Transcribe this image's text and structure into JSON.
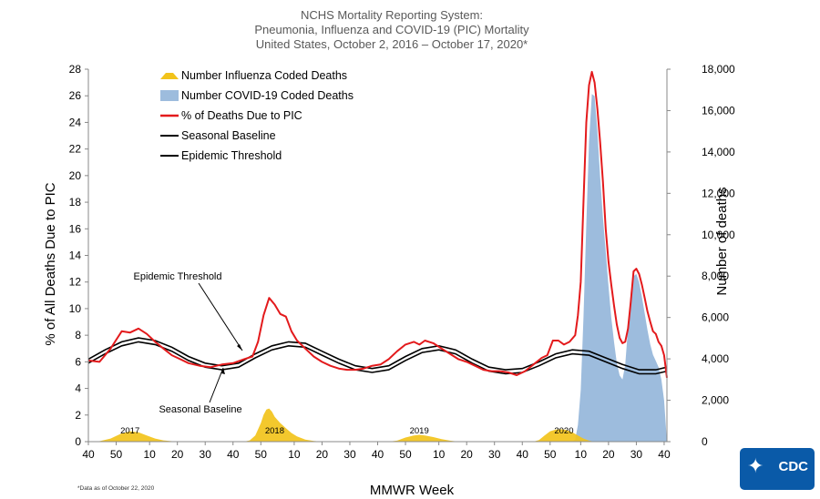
{
  "title_lines": [
    "NCHS Mortality Reporting System:",
    "Pneumonia, Influenza and COVID-19 (PIC) Mortality",
    "United States, October 2, 2016 – October 17, 2020*"
  ],
  "footnote": "*Data as of October 22, 2020",
  "logo_text": "CDC",
  "chart_data": {
    "type": "line",
    "xlabel": "MMWR Week",
    "ylabel_left": "% of All Deaths Due to PIC",
    "ylabel_right": "Number of deaths",
    "ylim_left": [
      0,
      28
    ],
    "ylim_right": [
      0,
      18000
    ],
    "yticks_left": [
      0,
      2,
      4,
      6,
      8,
      10,
      12,
      14,
      16,
      18,
      20,
      22,
      24,
      26,
      28
    ],
    "yticks_right": [
      "0",
      "2,000",
      "4,000",
      "6,000",
      "8,000",
      "10,000",
      "12,000",
      "14,000",
      "16,000",
      "18,000"
    ],
    "xticks": [
      "40",
      "50",
      "10",
      "20",
      "30",
      "40",
      "50",
      "10",
      "20",
      "30",
      "40",
      "50",
      "10",
      "20",
      "30",
      "40",
      "50",
      "10",
      "20",
      "30",
      "40"
    ],
    "xtick_index": [
      0,
      10,
      22,
      32,
      42,
      52,
      62,
      74,
      84,
      94,
      104,
      114,
      126,
      136,
      146,
      156,
      166,
      177,
      187,
      197,
      207
    ],
    "year_labels": [
      {
        "label": "2017",
        "index": 13
      },
      {
        "label": "2018",
        "index": 65
      },
      {
        "label": "2019",
        "index": 117
      },
      {
        "label": "2020",
        "index": 169
      }
    ],
    "legend": [
      {
        "label": "Number Influenza Coded Deaths",
        "kind": "area",
        "color": "#f2c31b"
      },
      {
        "label": "Number COVID-19 Coded Deaths",
        "kind": "area",
        "color": "#9dbcdd"
      },
      {
        "label": "% of Deaths Due to PIC",
        "kind": "line",
        "color": "#e31a1c"
      },
      {
        "label": "Seasonal Baseline",
        "kind": "line",
        "color": "#000000"
      },
      {
        "label": "Epidemic Threshold",
        "kind": "line",
        "color": "#000000"
      }
    ],
    "annotations": [
      {
        "label": "Epidemic Threshold",
        "points_to": "epidemic_threshold"
      },
      {
        "label": "Seasonal Baseline",
        "points_to": "seasonal_baseline"
      }
    ],
    "series": {
      "pic_percent": {
        "name": "% of Deaths Due to PIC",
        "color": "#e31a1c",
        "points": [
          [
            0,
            6.1
          ],
          [
            4,
            6.0
          ],
          [
            8,
            7.0
          ],
          [
            12,
            8.3
          ],
          [
            15,
            8.2
          ],
          [
            18,
            8.5
          ],
          [
            21,
            8.1
          ],
          [
            24,
            7.5
          ],
          [
            27,
            7.0
          ],
          [
            30,
            6.5
          ],
          [
            33,
            6.2
          ],
          [
            36,
            5.9
          ],
          [
            40,
            5.7
          ],
          [
            44,
            5.6
          ],
          [
            48,
            5.8
          ],
          [
            52,
            5.9
          ],
          [
            56,
            6.2
          ],
          [
            59,
            6.4
          ],
          [
            61,
            7.5
          ],
          [
            63,
            9.5
          ],
          [
            65,
            10.8
          ],
          [
            67,
            10.3
          ],
          [
            69,
            9.6
          ],
          [
            71,
            9.4
          ],
          [
            73,
            8.3
          ],
          [
            75,
            7.6
          ],
          [
            78,
            7.0
          ],
          [
            81,
            6.4
          ],
          [
            84,
            6.0
          ],
          [
            87,
            5.7
          ],
          [
            90,
            5.5
          ],
          [
            93,
            5.4
          ],
          [
            96,
            5.4
          ],
          [
            99,
            5.5
          ],
          [
            102,
            5.7
          ],
          [
            105,
            5.8
          ],
          [
            108,
            6.2
          ],
          [
            111,
            6.8
          ],
          [
            114,
            7.3
          ],
          [
            117,
            7.5
          ],
          [
            119,
            7.3
          ],
          [
            121,
            7.6
          ],
          [
            124,
            7.4
          ],
          [
            127,
            7.0
          ],
          [
            130,
            6.6
          ],
          [
            133,
            6.2
          ],
          [
            136,
            6.0
          ],
          [
            139,
            5.7
          ],
          [
            142,
            5.4
          ],
          [
            145,
            5.3
          ],
          [
            148,
            5.3
          ],
          [
            151,
            5.2
          ],
          [
            154,
            5.0
          ],
          [
            157,
            5.3
          ],
          [
            160,
            5.8
          ],
          [
            163,
            6.3
          ],
          [
            165,
            6.5
          ],
          [
            167,
            7.6
          ],
          [
            169,
            7.6
          ],
          [
            171,
            7.3
          ],
          [
            173,
            7.5
          ],
          [
            175,
            8.0
          ],
          [
            176,
            9.5
          ],
          [
            177,
            12.0
          ],
          [
            178,
            18.0
          ],
          [
            179,
            24.0
          ],
          [
            180,
            26.8
          ],
          [
            181,
            27.8
          ],
          [
            182,
            27.0
          ],
          [
            183,
            25.0
          ],
          [
            184,
            22.5
          ],
          [
            185,
            19.5
          ],
          [
            186,
            16.0
          ],
          [
            187,
            13.5
          ],
          [
            188,
            11.8
          ],
          [
            189,
            10.2
          ],
          [
            190,
            8.8
          ],
          [
            191,
            7.8
          ],
          [
            192,
            7.4
          ],
          [
            193,
            7.5
          ],
          [
            194,
            8.5
          ],
          [
            195,
            10.5
          ],
          [
            196,
            12.8
          ],
          [
            197,
            13.0
          ],
          [
            198,
            12.6
          ],
          [
            199,
            11.8
          ],
          [
            200,
            10.8
          ],
          [
            201,
            9.8
          ],
          [
            202,
            9.0
          ],
          [
            203,
            8.3
          ],
          [
            204,
            8.1
          ],
          [
            205,
            7.5
          ],
          [
            206,
            7.2
          ],
          [
            207,
            6.5
          ],
          [
            208,
            4.8
          ]
        ]
      },
      "seasonal_baseline": {
        "name": "Seasonal Baseline",
        "color": "#000000",
        "points": [
          [
            0,
            5.9
          ],
          [
            6,
            6.6
          ],
          [
            12,
            7.2
          ],
          [
            18,
            7.5
          ],
          [
            24,
            7.3
          ],
          [
            30,
            6.8
          ],
          [
            36,
            6.1
          ],
          [
            42,
            5.6
          ],
          [
            48,
            5.4
          ],
          [
            54,
            5.6
          ],
          [
            60,
            6.3
          ],
          [
            66,
            6.9
          ],
          [
            72,
            7.2
          ],
          [
            78,
            7.1
          ],
          [
            84,
            6.5
          ],
          [
            90,
            5.9
          ],
          [
            96,
            5.4
          ],
          [
            102,
            5.2
          ],
          [
            108,
            5.4
          ],
          [
            114,
            6.1
          ],
          [
            120,
            6.7
          ],
          [
            126,
            6.9
          ],
          [
            132,
            6.6
          ],
          [
            138,
            5.9
          ],
          [
            144,
            5.3
          ],
          [
            150,
            5.1
          ],
          [
            156,
            5.2
          ],
          [
            162,
            5.7
          ],
          [
            168,
            6.3
          ],
          [
            174,
            6.6
          ],
          [
            180,
            6.5
          ],
          [
            186,
            6.0
          ],
          [
            192,
            5.5
          ],
          [
            198,
            5.1
          ],
          [
            204,
            5.1
          ],
          [
            208,
            5.3
          ]
        ]
      },
      "epidemic_threshold": {
        "name": "Epidemic Threshold",
        "color": "#000000",
        "points": [
          [
            0,
            6.2
          ],
          [
            6,
            6.9
          ],
          [
            12,
            7.5
          ],
          [
            18,
            7.8
          ],
          [
            24,
            7.6
          ],
          [
            30,
            7.1
          ],
          [
            36,
            6.4
          ],
          [
            42,
            5.9
          ],
          [
            48,
            5.7
          ],
          [
            54,
            5.9
          ],
          [
            60,
            6.6
          ],
          [
            66,
            7.2
          ],
          [
            72,
            7.5
          ],
          [
            78,
            7.4
          ],
          [
            84,
            6.8
          ],
          [
            90,
            6.2
          ],
          [
            96,
            5.7
          ],
          [
            102,
            5.5
          ],
          [
            108,
            5.7
          ],
          [
            114,
            6.4
          ],
          [
            120,
            7.0
          ],
          [
            126,
            7.2
          ],
          [
            132,
            6.9
          ],
          [
            138,
            6.2
          ],
          [
            144,
            5.6
          ],
          [
            150,
            5.4
          ],
          [
            156,
            5.5
          ],
          [
            162,
            6.0
          ],
          [
            168,
            6.6
          ],
          [
            174,
            6.9
          ],
          [
            180,
            6.8
          ],
          [
            186,
            6.3
          ],
          [
            192,
            5.8
          ],
          [
            198,
            5.4
          ],
          [
            204,
            5.4
          ],
          [
            208,
            5.6
          ]
        ]
      },
      "influenza_deaths": {
        "name": "Number Influenza Coded Deaths",
        "color": "#f2c31b",
        "points": [
          [
            0,
            0
          ],
          [
            4,
            20
          ],
          [
            8,
            150
          ],
          [
            12,
            400
          ],
          [
            15,
            500
          ],
          [
            18,
            450
          ],
          [
            21,
            300
          ],
          [
            24,
            150
          ],
          [
            27,
            60
          ],
          [
            30,
            20
          ],
          [
            33,
            0
          ],
          [
            56,
            0
          ],
          [
            58,
            60
          ],
          [
            60,
            300
          ],
          [
            62,
            900
          ],
          [
            63,
            1300
          ],
          [
            64,
            1550
          ],
          [
            65,
            1600
          ],
          [
            66,
            1450
          ],
          [
            67,
            1200
          ],
          [
            69,
            900
          ],
          [
            71,
            650
          ],
          [
            73,
            420
          ],
          [
            75,
            250
          ],
          [
            78,
            100
          ],
          [
            81,
            30
          ],
          [
            84,
            0
          ],
          [
            108,
            0
          ],
          [
            111,
            50
          ],
          [
            114,
            200
          ],
          [
            117,
            300
          ],
          [
            119,
            330
          ],
          [
            121,
            300
          ],
          [
            124,
            220
          ],
          [
            127,
            120
          ],
          [
            130,
            50
          ],
          [
            133,
            0
          ],
          [
            160,
            0
          ],
          [
            162,
            80
          ],
          [
            164,
            300
          ],
          [
            166,
            500
          ],
          [
            168,
            580
          ],
          [
            170,
            600
          ],
          [
            172,
            560
          ],
          [
            174,
            450
          ],
          [
            176,
            300
          ],
          [
            178,
            150
          ],
          [
            180,
            50
          ],
          [
            182,
            0
          ],
          [
            208,
            0
          ]
        ]
      },
      "covid_deaths": {
        "name": "Number COVID-19 Coded Deaths",
        "color": "#9dbcdd",
        "points": [
          [
            174,
            0
          ],
          [
            175,
            100
          ],
          [
            176,
            800
          ],
          [
            177,
            2500
          ],
          [
            178,
            6000
          ],
          [
            179,
            10500
          ],
          [
            180,
            14500
          ],
          [
            181,
            16800
          ],
          [
            182,
            16700
          ],
          [
            183,
            15000
          ],
          [
            184,
            12800
          ],
          [
            185,
            10800
          ],
          [
            186,
            9200
          ],
          [
            187,
            7500
          ],
          [
            188,
            6000
          ],
          [
            189,
            4800
          ],
          [
            190,
            3800
          ],
          [
            191,
            3200
          ],
          [
            192,
            3000
          ],
          [
            193,
            3700
          ],
          [
            194,
            5500
          ],
          [
            195,
            7200
          ],
          [
            196,
            8000
          ],
          [
            197,
            8100
          ],
          [
            198,
            7700
          ],
          [
            199,
            7000
          ],
          [
            200,
            6200
          ],
          [
            201,
            5400
          ],
          [
            202,
            4700
          ],
          [
            203,
            4200
          ],
          [
            204,
            3900
          ],
          [
            205,
            3600
          ],
          [
            206,
            3000
          ],
          [
            207,
            2000
          ],
          [
            208,
            0
          ]
        ]
      }
    }
  }
}
